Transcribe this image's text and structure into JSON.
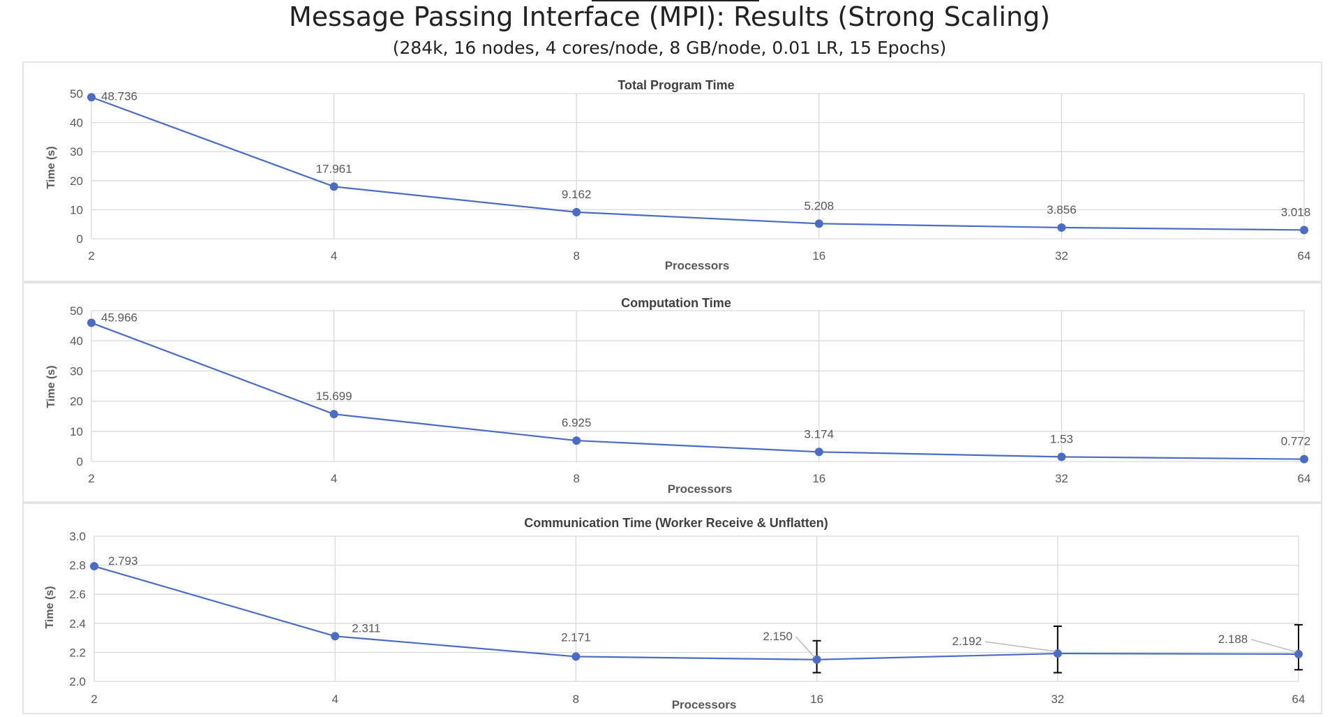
{
  "header": {
    "title": "Message Passing Interface (MPI): Results (Strong Scaling)",
    "subtitle": "(284k, 16 nodes, 4 cores/node, 8 GB/node, 0.01 LR, 15 Epochs)"
  },
  "colors": {
    "series": "#4a6cc4",
    "grid": "#d9d9d9",
    "text": "#595959",
    "title": "#404040",
    "errorbar": "#000000"
  },
  "chart_data": [
    {
      "type": "line",
      "title": "Total Program Time",
      "xlabel": "Processors",
      "ylabel": "Time (s)",
      "x": [
        "2",
        "4",
        "8",
        "16",
        "32",
        "64"
      ],
      "values": [
        48.736,
        17.961,
        9.162,
        5.208,
        3.856,
        3.018
      ],
      "data_labels": [
        "48.736",
        "17.961",
        "9.162",
        "5.208",
        "3.856",
        "3.018"
      ],
      "ylim": [
        0,
        50
      ],
      "yticks": [
        "0",
        "10",
        "20",
        "30",
        "40",
        "50"
      ],
      "grid": true,
      "legend": "none"
    },
    {
      "type": "line",
      "title": "Computation Time",
      "xlabel": "Processors",
      "ylabel": "Time (s)",
      "x": [
        "2",
        "4",
        "8",
        "16",
        "32",
        "64"
      ],
      "values": [
        45.966,
        15.699,
        6.925,
        3.174,
        1.53,
        0.772
      ],
      "data_labels": [
        "45.966",
        "15.699",
        "6.925",
        "3.174",
        "1.53",
        "0.772"
      ],
      "ylim": [
        0,
        50
      ],
      "yticks": [
        "0",
        "10",
        "20",
        "30",
        "40",
        "50"
      ],
      "grid": true,
      "legend": "none"
    },
    {
      "type": "line",
      "title": "Communication Time (Worker Receive & Unflatten)",
      "xlabel": "Processors",
      "ylabel": "Time (s)",
      "x": [
        "2",
        "4",
        "8",
        "16",
        "32",
        "64"
      ],
      "values": [
        2.793,
        2.311,
        2.171,
        2.15,
        2.192,
        2.188
      ],
      "data_labels": [
        "2.793",
        "2.311",
        "2.171",
        "2.150",
        "2.192",
        "2.188"
      ],
      "error_bars": [
        null,
        null,
        null,
        [
          2.06,
          2.28
        ],
        [
          2.06,
          2.38
        ],
        [
          2.08,
          2.39
        ]
      ],
      "ylim": [
        2.0,
        3.0
      ],
      "yticks": [
        "2.0",
        "2.2",
        "2.4",
        "2.6",
        "2.8",
        "3.0"
      ],
      "grid": true,
      "legend": "none"
    }
  ]
}
